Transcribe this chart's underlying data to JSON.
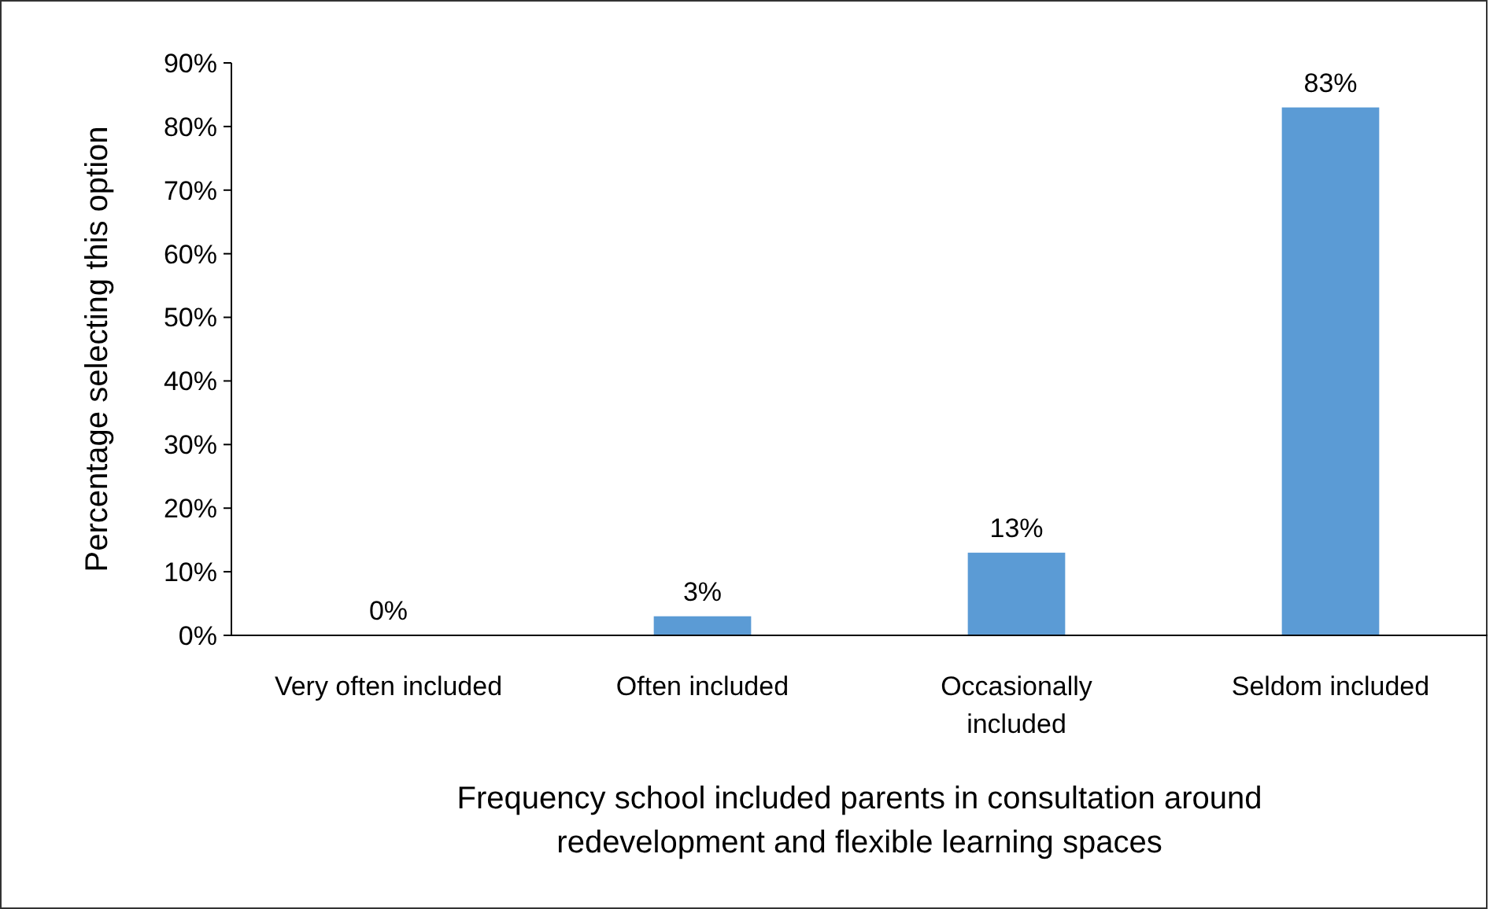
{
  "chart_data": {
    "type": "bar",
    "xlabel": "Frequency school included parents in consultation around redevelopment and flexible learning spaces",
    "ylabel": "Percentage selecting this option",
    "categories": [
      "Very often included",
      "Often included",
      "Occasionally included",
      "Seldom included"
    ],
    "values": [
      0,
      3,
      13,
      83
    ],
    "color": "#5b9bd5",
    "value_labels": [
      "0%",
      "3%",
      "13%",
      "83%"
    ],
    "ylim": [
      0,
      90
    ],
    "yticks": [
      {
        "value": 0,
        "label": "0%"
      },
      {
        "value": 10,
        "label": "10%"
      },
      {
        "value": 20,
        "label": "20%"
      },
      {
        "value": 30,
        "label": "30%"
      },
      {
        "value": 40,
        "label": "40%"
      },
      {
        "value": 50,
        "label": "50%"
      },
      {
        "value": 60,
        "label": "60%"
      },
      {
        "value": 70,
        "label": "70%"
      },
      {
        "value": 80,
        "label": "80%"
      },
      {
        "value": 90,
        "label": "90%"
      }
    ],
    "grid": false
  }
}
